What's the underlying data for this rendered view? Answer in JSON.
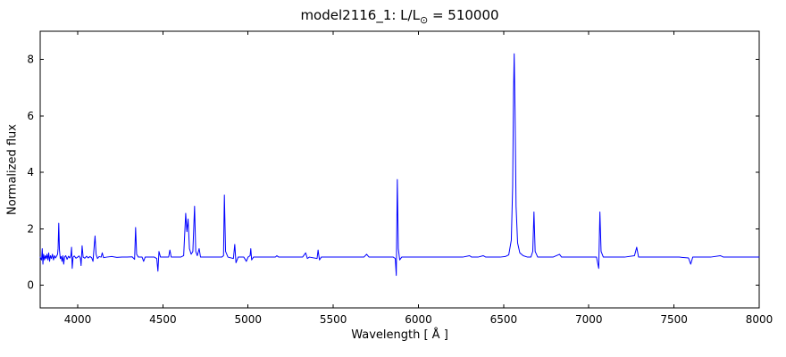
{
  "chart_data": {
    "type": "line",
    "title": {
      "prefix": "model2116_1: L/L",
      "sub": "⊙",
      "suffix": " = 510000"
    },
    "xlabel": "Wavelength [ Å ]",
    "ylabel": "Normalized flux",
    "xlim": [
      3780,
      8000
    ],
    "ylim": [
      -0.8,
      9.0
    ],
    "xticks": [
      4000,
      4500,
      5000,
      5500,
      6000,
      6500,
      7000,
      7500,
      8000
    ],
    "yticks": [
      0,
      2,
      4,
      6,
      8
    ],
    "grid": false,
    "legend": "none",
    "line_color": "#0000ff",
    "axis_color": "#000000",
    "background": "#ffffff",
    "series": [
      {
        "name": "normalized-spectrum",
        "points": [
          [
            3780,
            1
          ],
          [
            3788,
            0.9
          ],
          [
            3792,
            1.3
          ],
          [
            3796,
            0.75
          ],
          [
            3800,
            1.1
          ],
          [
            3805,
            0.9
          ],
          [
            3810,
            1.05
          ],
          [
            3815,
            0.95
          ],
          [
            3820,
            1.1
          ],
          [
            3825,
            0.9
          ],
          [
            3830,
            1.15
          ],
          [
            3835,
            0.85
          ],
          [
            3840,
            1.05
          ],
          [
            3846,
            0.95
          ],
          [
            3852,
            1.1
          ],
          [
            3858,
            0.9
          ],
          [
            3864,
            1.05
          ],
          [
            3870,
            0.97
          ],
          [
            3876,
            1.03
          ],
          [
            3882,
            1.1
          ],
          [
            3885,
            1.3
          ],
          [
            3889,
            2.2
          ],
          [
            3893,
            1.25
          ],
          [
            3898,
            0.95
          ],
          [
            3903,
            1.02
          ],
          [
            3908,
            0.85
          ],
          [
            3913,
            1.05
          ],
          [
            3918,
            0.75
          ],
          [
            3923,
            1.0
          ],
          [
            3930,
            1.05
          ],
          [
            3938,
            0.92
          ],
          [
            3946,
            1.03
          ],
          [
            3954,
            0.97
          ],
          [
            3960,
            1.05
          ],
          [
            3964,
            1.35
          ],
          [
            3968,
            0.6
          ],
          [
            3973,
            1.0
          ],
          [
            3980,
            1.04
          ],
          [
            3990,
            0.96
          ],
          [
            4000,
            1.0
          ],
          [
            4008,
            1.04
          ],
          [
            4016,
            0.96
          ],
          [
            4020,
            0.7
          ],
          [
            4026,
            1.4
          ],
          [
            4032,
            1.0
          ],
          [
            4042,
            0.96
          ],
          [
            4052,
            1.03
          ],
          [
            4062,
            0.97
          ],
          [
            4072,
            1.02
          ],
          [
            4082,
            0.98
          ],
          [
            4090,
            0.85
          ],
          [
            4097,
            1.4
          ],
          [
            4102,
            1.75
          ],
          [
            4108,
            1.1
          ],
          [
            4116,
            0.95
          ],
          [
            4126,
            1.02
          ],
          [
            4138,
            1.0
          ],
          [
            4144,
            1.15
          ],
          [
            4152,
            0.98
          ],
          [
            4170,
            1.0
          ],
          [
            4200,
            1.02
          ],
          [
            4230,
            0.99
          ],
          [
            4260,
            1.0
          ],
          [
            4290,
            1.0
          ],
          [
            4320,
            1.01
          ],
          [
            4334,
            0.92
          ],
          [
            4340,
            2.05
          ],
          [
            4346,
            1.1
          ],
          [
            4356,
            1.0
          ],
          [
            4378,
            1.0
          ],
          [
            4387,
            0.85
          ],
          [
            4396,
            1.0
          ],
          [
            4420,
            1.0
          ],
          [
            4450,
            1.0
          ],
          [
            4464,
            0.95
          ],
          [
            4471,
            0.5
          ],
          [
            4477,
            1.2
          ],
          [
            4486,
            1.0
          ],
          [
            4510,
            1.0
          ],
          [
            4534,
            1.0
          ],
          [
            4541,
            1.25
          ],
          [
            4549,
            1.0
          ],
          [
            4575,
            1.0
          ],
          [
            4605,
            1.0
          ],
          [
            4622,
            1.05
          ],
          [
            4634,
            2.55
          ],
          [
            4641,
            1.9
          ],
          [
            4648,
            2.35
          ],
          [
            4656,
            1.3
          ],
          [
            4666,
            1.1
          ],
          [
            4676,
            1.2
          ],
          [
            4686,
            2.8
          ],
          [
            4693,
            1.2
          ],
          [
            4702,
            1.05
          ],
          [
            4713,
            1.3
          ],
          [
            4721,
            1.0
          ],
          [
            4760,
            1.0
          ],
          [
            4810,
            1.0
          ],
          [
            4846,
            1.0
          ],
          [
            4856,
            1.05
          ],
          [
            4861,
            3.2
          ],
          [
            4868,
            1.2
          ],
          [
            4882,
            1.0
          ],
          [
            4914,
            0.95
          ],
          [
            4922,
            1.45
          ],
          [
            4929,
            0.8
          ],
          [
            4942,
            1.0
          ],
          [
            4975,
            1.0
          ],
          [
            4990,
            0.85
          ],
          [
            5000,
            1.0
          ],
          [
            5012,
            1.05
          ],
          [
            5016,
            1.3
          ],
          [
            5021,
            0.9
          ],
          [
            5032,
            1.0
          ],
          [
            5090,
            1.0
          ],
          [
            5160,
            1.0
          ],
          [
            5169,
            1.05
          ],
          [
            5180,
            1.0
          ],
          [
            5250,
            1.0
          ],
          [
            5320,
            1.0
          ],
          [
            5338,
            1.15
          ],
          [
            5348,
            0.95
          ],
          [
            5360,
            1.0
          ],
          [
            5405,
            0.95
          ],
          [
            5411,
            1.25
          ],
          [
            5419,
            0.9
          ],
          [
            5430,
            1.0
          ],
          [
            5500,
            1.0
          ],
          [
            5560,
            1.0
          ],
          [
            5620,
            1.0
          ],
          [
            5680,
            1.0
          ],
          [
            5696,
            1.1
          ],
          [
            5710,
            1.0
          ],
          [
            5760,
            1.0
          ],
          [
            5810,
            1.0
          ],
          [
            5852,
            1.0
          ],
          [
            5864,
            0.95
          ],
          [
            5870,
            0.35
          ],
          [
            5876,
            3.75
          ],
          [
            5882,
            1.3
          ],
          [
            5890,
            0.9
          ],
          [
            5902,
            1.0
          ],
          [
            5960,
            1.0
          ],
          [
            6020,
            1.0
          ],
          [
            6080,
            1.0
          ],
          [
            6140,
            1.0
          ],
          [
            6200,
            1.0
          ],
          [
            6260,
            1.0
          ],
          [
            6300,
            1.05
          ],
          [
            6312,
            1.0
          ],
          [
            6350,
            1.0
          ],
          [
            6380,
            1.05
          ],
          [
            6395,
            1.0
          ],
          [
            6440,
            1.0
          ],
          [
            6480,
            1.0
          ],
          [
            6510,
            1.02
          ],
          [
            6530,
            1.08
          ],
          [
            6545,
            1.6
          ],
          [
            6553,
            3.5
          ],
          [
            6558,
            6.8
          ],
          [
            6562,
            8.2
          ],
          [
            6567,
            6.2
          ],
          [
            6573,
            2.8
          ],
          [
            6582,
            1.5
          ],
          [
            6595,
            1.15
          ],
          [
            6615,
            1.05
          ],
          [
            6640,
            1.0
          ],
          [
            6660,
            1.0
          ],
          [
            6671,
            1.2
          ],
          [
            6678,
            2.6
          ],
          [
            6685,
            1.2
          ],
          [
            6700,
            1.0
          ],
          [
            6740,
            1.0
          ],
          [
            6790,
            1.0
          ],
          [
            6828,
            1.1
          ],
          [
            6840,
            1.0
          ],
          [
            6895,
            1.0
          ],
          [
            6950,
            1.0
          ],
          [
            7005,
            1.0
          ],
          [
            7045,
            1.0
          ],
          [
            7058,
            0.6
          ],
          [
            7065,
            2.6
          ],
          [
            7072,
            1.2
          ],
          [
            7085,
            1.0
          ],
          [
            7140,
            1.0
          ],
          [
            7210,
            1.0
          ],
          [
            7268,
            1.05
          ],
          [
            7281,
            1.35
          ],
          [
            7292,
            1.0
          ],
          [
            7350,
            1.0
          ],
          [
            7410,
            1.0
          ],
          [
            7470,
            1.0
          ],
          [
            7530,
            1.0
          ],
          [
            7585,
            0.97
          ],
          [
            7598,
            0.75
          ],
          [
            7610,
            1.0
          ],
          [
            7660,
            1.0
          ],
          [
            7715,
            1.0
          ],
          [
            7772,
            1.05
          ],
          [
            7790,
            1.0
          ],
          [
            7850,
            1.0
          ],
          [
            7905,
            1.0
          ],
          [
            7955,
            1.0
          ],
          [
            8000,
            1.0
          ]
        ]
      }
    ]
  }
}
